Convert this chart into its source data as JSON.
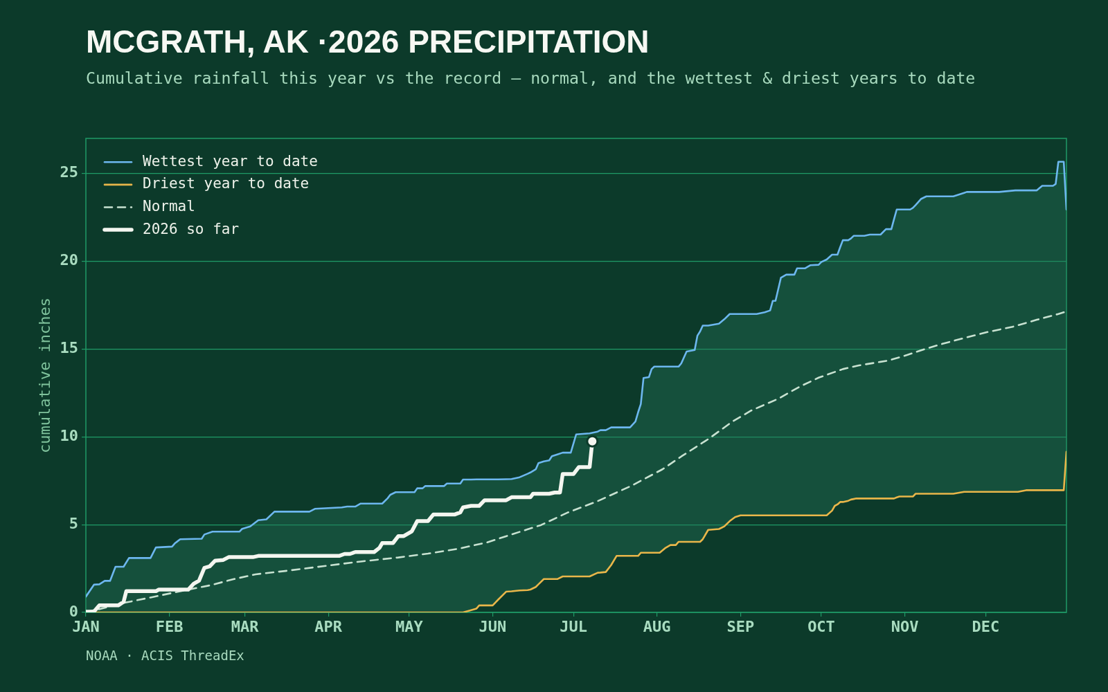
{
  "chart_data": {
    "type": "line",
    "title": "MCGRATH, AK ·2026 PRECIPITATION",
    "subtitle": "Cumulative rainfall this year vs the record — normal, and the wettest & driest years to date",
    "ylabel": "cumulative inches",
    "annotations": [
      "NOAA · ACIS ThreadEx"
    ],
    "x": [
      "--01-01",
      "--01-04",
      "--01-06",
      "--01-07",
      "--01-08",
      "--01-10",
      "--01-12",
      "--01-15",
      "--01-17",
      "--01-25",
      "--01-27",
      "--02-02",
      "--02-03",
      "--02-05",
      "--02-13",
      "--02-14",
      "--02-17",
      "--02-27",
      "--02-28",
      "--03-03",
      "--03-06",
      "--03-09",
      "--03-12",
      "--03-25",
      "--03-27",
      "--04-06",
      "--04-08",
      "--04-11",
      "--04-13",
      "--04-21",
      "--04-23",
      "--04-24",
      "--04-26",
      "--05-03",
      "--05-04",
      "--05-06",
      "--05-07",
      "--05-14",
      "--05-15",
      "--05-20",
      "--05-21",
      "--05-24",
      "--05-26",
      "--05-27",
      "--06-01",
      "--06-03",
      "--06-06",
      "--06-08",
      "--06-11",
      "--06-14",
      "--06-15",
      "--06-17",
      "--06-18",
      "--06-20",
      "--06-22",
      "--06-23",
      "--06-25",
      "--06-27",
      "--06-30",
      "--07-02",
      "--07-07",
      "--07-10",
      "--07-11",
      "--07-13",
      "--07-15",
      "--07-17",
      "--07-22",
      "--07-24",
      "--07-25",
      "--07-26",
      "--07-27",
      "--07-29",
      "--07-30",
      "--07-31",
      "--08-02",
      "--08-04",
      "--08-06",
      "--08-08",
      "--08-09",
      "--08-10",
      "--08-12",
      "--08-15",
      "--08-16",
      "--08-17",
      "--08-18",
      "--08-20",
      "--08-24",
      "--08-26",
      "--08-28",
      "--08-30",
      "--09-01",
      "--09-07",
      "--09-10",
      "--09-12",
      "--09-13",
      "--09-14",
      "--09-16",
      "--09-18",
      "--09-21",
      "--09-22",
      "--09-25",
      "--09-27",
      "--09-30",
      "--10-01",
      "--10-03",
      "--10-05",
      "--10-06",
      "--10-07",
      "--10-08",
      "--10-09",
      "--10-11",
      "--10-12",
      "--10-13",
      "--10-14",
      "--10-17",
      "--10-19",
      "--10-23",
      "--10-25",
      "--10-27",
      "--10-28",
      "--10-29",
      "--10-30",
      "--11-03",
      "--11-04",
      "--11-05",
      "--11-07",
      "--11-09",
      "--11-19",
      "--11-23",
      "--11-24",
      "--12-06",
      "--12-12",
      "--12-13",
      "--12-16",
      "--12-20",
      "--12-22",
      "--12-26",
      "--12-27",
      "--12-28",
      "--12-30",
      "--12-31"
    ],
    "series": [
      {
        "type": "scatter",
        "color": "#f4f6f0",
        "marker": "circle",
        "x": [
          "--07-08"
        ],
        "values": [
          9.75
        ]
      },
      {
        "name": "2026 so far",
        "color": "#f4f6f0",
        "x": [
          "--01-01",
          "--01-04",
          "--01-06",
          "--01-13",
          "--01-15",
          "--01-16",
          "--01-27",
          "--01-28",
          "--02-08",
          "--02-10",
          "--02-12",
          "--02-14",
          "--02-16",
          "--02-18",
          "--02-21",
          "--02-23",
          "--03-04",
          "--03-06",
          "--04-05",
          "--04-07",
          "--04-09",
          "--04-11",
          "--04-18",
          "--04-20",
          "--04-21",
          "--04-25",
          "--04-27",
          "--04-29",
          "--05-02",
          "--05-04",
          "--05-08",
          "--05-10",
          "--05-18",
          "--05-20",
          "--05-21",
          "--05-24",
          "--05-27",
          "--05-29",
          "--06-06",
          "--06-08",
          "--06-15",
          "--06-16",
          "--06-22",
          "--06-24",
          "--06-26",
          "--06-27",
          "--07-01",
          "--07-03",
          "--07-07",
          "--07-08"
        ],
        "values": [
          0.04,
          0.05,
          0.4,
          0.4,
          0.6,
          1.21,
          1.21,
          1.3,
          1.3,
          1.63,
          1.81,
          2.54,
          2.63,
          2.95,
          2.99,
          3.15,
          3.15,
          3.22,
          3.22,
          3.33,
          3.33,
          3.44,
          3.44,
          3.68,
          3.95,
          3.95,
          4.35,
          4.35,
          4.62,
          5.2,
          5.2,
          5.58,
          5.58,
          5.7,
          5.98,
          6.07,
          6.07,
          6.39,
          6.39,
          6.56,
          6.56,
          6.76,
          6.76,
          6.83,
          6.83,
          7.88,
          7.88,
          8.28,
          8.28,
          9.75
        ]
      },
      {
        "name": "Normal",
        "color": "#c8e2d1",
        "line_style": "dashed",
        "x": [
          "--01-01",
          "--01-05",
          "--01-15",
          "--01-25",
          "--02-07",
          "--02-16",
          "--02-25",
          "--03-05",
          "--03-16",
          "--03-30",
          "--04-13",
          "--04-27",
          "--05-08",
          "--05-19",
          "--05-30",
          "--06-08",
          "--06-19",
          "--06-29",
          "--07-10",
          "--07-23",
          "--08-03",
          "--08-10",
          "--08-20",
          "--08-29",
          "--09-05",
          "--09-15",
          "--09-23",
          "--09-30",
          "--10-09",
          "--10-15",
          "--10-26",
          "--11-02",
          "--11-08",
          "--11-15",
          "--11-24",
          "--12-02",
          "--12-11",
          "--12-20",
          "--12-28",
          "--12-30",
          "--12-31"
        ],
        "values": [
          0.05,
          0.15,
          0.54,
          0.85,
          1.27,
          1.54,
          1.9,
          2.17,
          2.36,
          2.63,
          2.9,
          3.13,
          3.35,
          3.62,
          3.99,
          4.44,
          4.98,
          5.7,
          6.34,
          7.25,
          8.15,
          8.88,
          9.87,
          10.87,
          11.5,
          12.17,
          12.86,
          13.37,
          13.86,
          14.07,
          14.35,
          14.67,
          14.98,
          15.3,
          15.67,
          15.98,
          16.27,
          16.67,
          17.0,
          17.1,
          16.94
        ]
      },
      {
        "name": "Driest year to date",
        "color": "#e9b64a",
        "values": [
          0,
          0,
          0,
          0,
          0,
          0,
          0,
          0,
          0,
          0,
          0,
          0,
          0,
          0,
          0,
          0,
          0,
          0,
          0,
          0,
          0,
          0,
          0,
          0,
          0,
          0,
          0,
          0,
          0,
          0,
          0,
          0,
          0,
          0,
          0,
          0,
          0,
          0,
          0,
          0,
          0,
          0.13,
          0.22,
          0.4,
          0.4,
          0.72,
          1.18,
          1.2,
          1.25,
          1.27,
          1.3,
          1.45,
          1.6,
          1.9,
          1.9,
          1.9,
          1.9,
          2.05,
          2.05,
          2.05,
          2.05,
          2.26,
          2.27,
          2.3,
          2.7,
          3.22,
          3.22,
          3.22,
          3.22,
          3.4,
          3.4,
          3.4,
          3.4,
          3.4,
          3.4,
          3.66,
          3.84,
          3.84,
          4.02,
          4.02,
          4.02,
          4.02,
          4.02,
          4.02,
          4.17,
          4.7,
          4.75,
          4.9,
          5.2,
          5.43,
          5.53,
          5.53,
          5.53,
          5.53,
          5.53,
          5.53,
          5.53,
          5.53,
          5.53,
          5.53,
          5.53,
          5.53,
          5.53,
          5.53,
          5.53,
          5.8,
          6.07,
          6.15,
          6.29,
          6.29,
          6.36,
          6.43,
          6.46,
          6.49,
          6.49,
          6.49,
          6.49,
          6.49,
          6.49,
          6.49,
          6.55,
          6.6,
          6.6,
          6.6,
          6.76,
          6.76,
          6.76,
          6.76,
          6.87,
          6.87,
          6.87,
          6.87,
          6.87,
          6.96,
          6.96,
          6.96,
          6.96,
          6.96,
          6.96,
          6.96,
          9.15
        ]
      },
      {
        "name": "Wettest year to date",
        "color": "#6db7ef",
        "values": [
          0.9,
          1.58,
          1.6,
          1.7,
          1.8,
          1.8,
          2.6,
          2.6,
          3.1,
          3.1,
          3.7,
          3.75,
          3.93,
          4.17,
          4.2,
          4.44,
          4.6,
          4.6,
          4.76,
          4.9,
          5.25,
          5.3,
          5.74,
          5.74,
          5.9,
          5.98,
          6.03,
          6.03,
          6.2,
          6.2,
          6.5,
          6.7,
          6.85,
          6.85,
          7.07,
          7.07,
          7.2,
          7.2,
          7.34,
          7.34,
          7.57,
          7.57,
          7.58,
          7.58,
          7.58,
          7.58,
          7.59,
          7.6,
          7.7,
          7.9,
          7.97,
          8.15,
          8.5,
          8.6,
          8.66,
          8.9,
          9.0,
          9.1,
          9.1,
          10.14,
          10.2,
          10.3,
          10.38,
          10.38,
          10.54,
          10.54,
          10.54,
          10.87,
          11.4,
          11.87,
          13.35,
          13.4,
          13.86,
          14.0,
          14.0,
          14.0,
          14.0,
          14.0,
          14.0,
          14.18,
          14.86,
          14.95,
          15.76,
          16.0,
          16.34,
          16.34,
          16.45,
          16.7,
          17.0,
          17.0,
          17.0,
          17.0,
          17.1,
          17.2,
          17.75,
          17.75,
          19.06,
          19.24,
          19.24,
          19.6,
          19.6,
          19.78,
          19.8,
          19.96,
          20.1,
          20.38,
          20.38,
          20.38,
          20.8,
          21.2,
          21.2,
          21.3,
          21.45,
          21.45,
          21.45,
          21.52,
          21.52,
          21.83,
          21.83,
          22.4,
          22.95,
          22.95,
          22.95,
          23.04,
          23.2,
          23.55,
          23.7,
          23.7,
          23.9,
          23.95,
          23.95,
          24.04,
          24.04,
          24.04,
          24.04,
          24.3,
          24.3,
          24.4,
          25.67,
          25.67,
          22.95
        ],
        "lower": [
          0,
          0,
          0,
          0,
          0,
          0,
          0,
          0,
          0,
          0,
          0,
          0,
          0,
          0,
          0,
          0,
          0,
          0,
          0,
          0,
          0,
          0,
          0,
          0,
          0,
          0,
          0,
          0,
          0,
          0,
          0,
          0,
          0,
          0,
          0,
          0,
          0,
          0,
          0,
          0,
          0,
          0.13,
          0.22,
          0.4,
          0.4,
          0.72,
          1.18,
          1.2,
          1.25,
          1.27,
          1.3,
          1.45,
          1.6,
          1.9,
          1.9,
          1.9,
          1.9,
          2.05,
          2.05,
          2.05,
          2.05,
          2.26,
          2.27,
          2.3,
          2.7,
          3.22,
          3.22,
          3.22,
          3.22,
          3.4,
          3.4,
          3.4,
          3.4,
          3.4,
          3.4,
          3.66,
          3.84,
          3.84,
          4.02,
          4.02,
          4.02,
          4.02,
          4.02,
          4.02,
          4.17,
          4.7,
          4.75,
          4.9,
          5.2,
          5.43,
          5.53,
          5.53,
          5.53,
          5.53,
          5.53,
          5.53,
          5.53,
          5.53,
          5.53,
          5.53,
          5.53,
          5.53,
          5.53,
          5.53,
          5.53,
          5.8,
          6.07,
          6.15,
          6.29,
          6.29,
          6.36,
          6.43,
          6.46,
          6.49,
          6.49,
          6.49,
          6.49,
          6.49,
          6.49,
          6.49,
          6.55,
          6.6,
          6.6,
          6.6,
          6.76,
          6.76,
          6.76,
          6.76,
          6.87,
          6.87,
          6.87,
          6.87,
          6.87,
          6.96,
          6.96,
          6.96,
          6.96,
          6.96,
          6.96,
          6.96,
          9.15
        ],
        "upper": [
          0.9,
          1.58,
          1.6,
          1.7,
          1.8,
          1.8,
          2.6,
          2.6,
          3.1,
          3.1,
          3.7,
          3.75,
          3.93,
          4.17,
          4.2,
          4.44,
          4.6,
          4.6,
          4.76,
          4.9,
          5.25,
          5.3,
          5.74,
          5.74,
          5.9,
          5.98,
          6.03,
          6.03,
          6.2,
          6.2,
          6.5,
          6.7,
          6.85,
          6.85,
          7.07,
          7.07,
          7.2,
          7.2,
          7.34,
          7.34,
          7.57,
          7.57,
          7.58,
          7.58,
          7.58,
          7.58,
          7.59,
          7.6,
          7.7,
          7.9,
          7.97,
          8.15,
          8.5,
          8.6,
          8.66,
          8.9,
          9.0,
          9.1,
          9.1,
          10.14,
          10.2,
          10.3,
          10.38,
          10.38,
          10.54,
          10.54,
          10.54,
          10.87,
          11.4,
          11.87,
          13.35,
          13.4,
          13.86,
          14.0,
          14.0,
          14.0,
          14.0,
          14.0,
          14.0,
          14.18,
          14.86,
          14.95,
          15.76,
          16.0,
          16.34,
          16.34,
          16.45,
          16.7,
          17.0,
          17.0,
          17.0,
          17.0,
          17.1,
          17.2,
          17.75,
          17.75,
          19.06,
          19.24,
          19.24,
          19.6,
          19.6,
          19.78,
          19.8,
          19.96,
          20.1,
          20.38,
          20.38,
          20.38,
          20.8,
          21.2,
          21.2,
          21.3,
          21.45,
          21.45,
          21.45,
          21.52,
          21.52,
          21.83,
          21.83,
          22.4,
          22.95,
          22.95,
          22.95,
          23.04,
          23.2,
          23.55,
          23.7,
          23.7,
          23.9,
          23.95,
          23.95,
          24.04,
          24.04,
          24.04,
          24.04,
          24.3,
          24.3,
          24.4,
          25.67,
          25.67,
          22.95
        ]
      }
    ],
    "xlim": [
      "--01-01",
      "--12-31"
    ],
    "xticks": [
      {
        "value": "--01-01",
        "label": "JAN"
      },
      {
        "value": "--02-01",
        "label": "FEB"
      },
      {
        "value": "--03-01",
        "label": "MAR"
      },
      {
        "value": "--04-01",
        "label": "APR"
      },
      {
        "value": "--05-01",
        "label": "MAY"
      },
      {
        "value": "--06-01",
        "label": "JUN"
      },
      {
        "value": "--07-01",
        "label": "JUL"
      },
      {
        "value": "--08-01",
        "label": "AUG"
      },
      {
        "value": "--09-01",
        "label": "SEP"
      },
      {
        "value": "--10-01",
        "label": "OCT"
      },
      {
        "value": "--11-01",
        "label": "NOV"
      },
      {
        "value": "--12-01",
        "label": "DEC"
      }
    ],
    "ylim": [
      0,
      27
    ],
    "yticks": [
      0,
      5,
      10,
      15,
      20,
      25
    ],
    "grid": "y",
    "legend": "top left"
  }
}
